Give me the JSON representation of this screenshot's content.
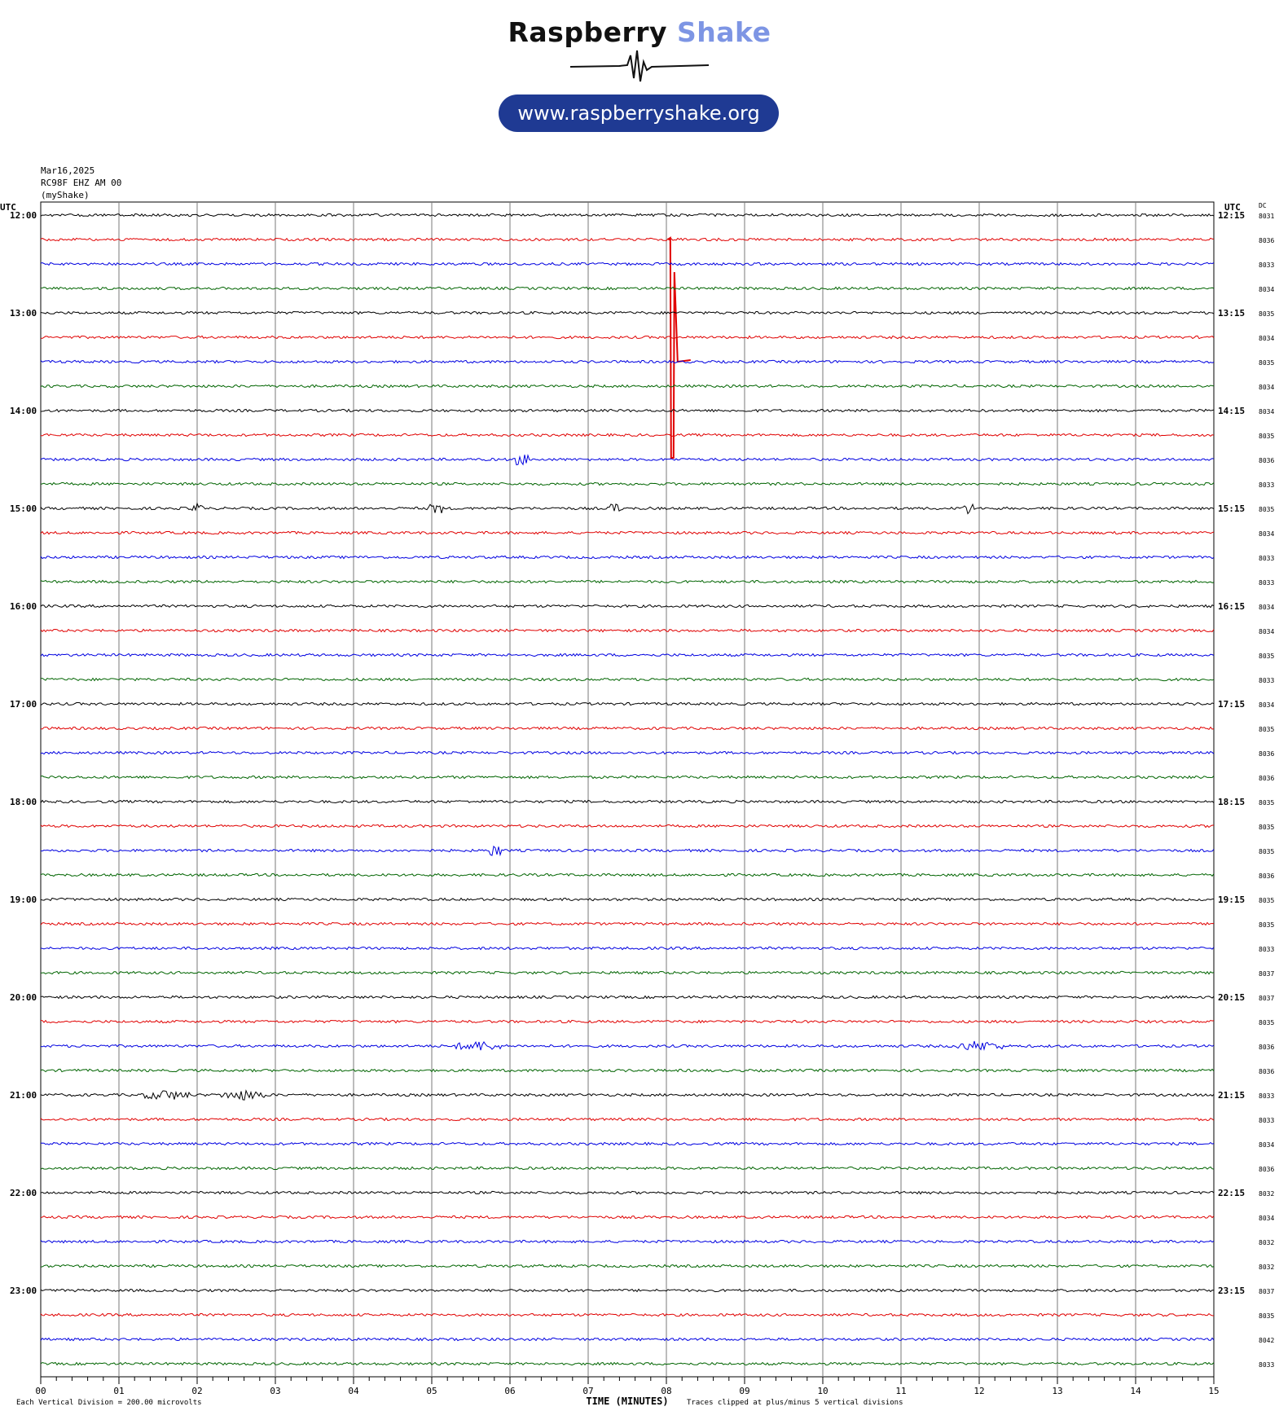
{
  "brand": {
    "name_part1": "Raspberry",
    "name_part2": "Shake",
    "url": "www.raspberryshake.org",
    "accent_color": "#7d95e4",
    "button_color": "#1f3a93"
  },
  "header": {
    "date": "Mar16,2025",
    "station": "RC98F EHZ AM 00",
    "network": "(myShake)"
  },
  "chart_data": {
    "type": "line",
    "xlabel": "TIME (MINUTES)",
    "xlim": [
      0,
      15
    ],
    "x_ticks": [
      "00",
      "01",
      "02",
      "03",
      "04",
      "05",
      "06",
      "07",
      "08",
      "09",
      "10",
      "11",
      "12",
      "13",
      "14",
      "15"
    ],
    "left_axis_label": "UTC",
    "right_axis_label": "UTC",
    "dc_label": "DC",
    "left_hour_labels": [
      "12:00",
      "13:00",
      "14:00",
      "15:00",
      "16:00",
      "17:00",
      "18:00",
      "19:00",
      "20:00",
      "21:00",
      "22:00",
      "23:00"
    ],
    "right_hour_labels": [
      "12:15",
      "13:15",
      "14:15",
      "15:15",
      "16:15",
      "17:15",
      "18:15",
      "19:15",
      "20:15",
      "21:15",
      "22:15",
      "23:15"
    ],
    "dc_offsets": [
      "8031",
      "8036",
      "8033",
      "8034",
      "8035",
      "8034",
      "8035",
      "8034",
      "8034",
      "8035",
      "8036",
      "8033",
      "8035",
      "8034",
      "8033",
      "8033",
      "8034",
      "8034",
      "8035",
      "8033",
      "8034",
      "8035",
      "8036",
      "8036",
      "8035",
      "8035",
      "8035",
      "8036",
      "8035",
      "8035",
      "8033",
      "8037",
      "8037",
      "8035",
      "8036",
      "8036",
      "8033",
      "8033",
      "8034",
      "8036",
      "8032",
      "8034",
      "8032",
      "8032",
      "8037",
      "8035",
      "8042",
      "8033"
    ],
    "trace_colors": [
      "#000000",
      "#e00000",
      "#0000e0",
      "#006400"
    ],
    "footer_scale": "Each Vertical Division =  200.00 microvolts",
    "footer_clip": "Traces clipped at plus/minus 5 vertical divisions",
    "events": [
      {
        "row": 1,
        "minute": 8.05,
        "kind": "spike"
      },
      {
        "row": 10,
        "minute": 6.15,
        "kind": "small"
      },
      {
        "row": 12,
        "minute": 2.0,
        "kind": "small"
      },
      {
        "row": 12,
        "minute": 5.05,
        "kind": "small"
      },
      {
        "row": 12,
        "minute": 7.35,
        "kind": "small"
      },
      {
        "row": 12,
        "minute": 11.85,
        "kind": "small"
      },
      {
        "row": 26,
        "minute": 5.8,
        "kind": "small"
      },
      {
        "row": 34,
        "minute": 5.6,
        "kind": "burst"
      },
      {
        "row": 34,
        "minute": 12.0,
        "kind": "burst"
      },
      {
        "row": 36,
        "minute": 1.6,
        "kind": "burst"
      },
      {
        "row": 36,
        "minute": 2.6,
        "kind": "burst"
      }
    ]
  }
}
